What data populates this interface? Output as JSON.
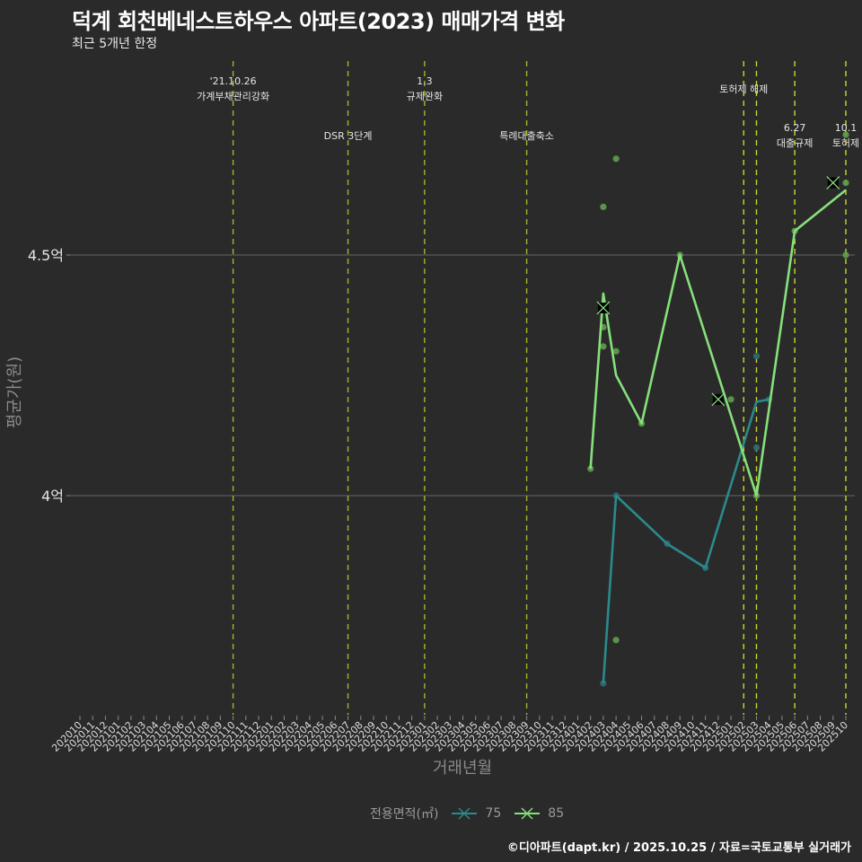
{
  "header": {
    "title": "덕계 회천베네스트하우스 아파트(2023) 매매가격 변화",
    "subtitle": "최근 5개년 한정"
  },
  "legend": {
    "title": "전용면적(㎡)",
    "items": [
      {
        "label": "75",
        "color": "#2a8a8c"
      },
      {
        "label": "85",
        "color": "#86e07c"
      }
    ]
  },
  "footer": "©디아파트(dapt.kr) / 2025.10.25 / 자료=국토교통부 실거래가",
  "colors": {
    "background": "#2b2a2a",
    "gridline": "#5a5a5a",
    "event_line": "#c8d62a",
    "series_75": "#2a8a8c",
    "series_85": "#86e07c",
    "point_85": "#5fa04e",
    "point_75": "#2a6e72"
  },
  "chart_data": {
    "type": "line",
    "title": "덕계 회천베네스트하우스 아파트(2023) 매매가격 변화",
    "subtitle": "최근 5개년 한정",
    "xlabel": "거래년월",
    "ylabel": "평균가(원)",
    "yticks": [
      {
        "value": 4.0,
        "label": "4억"
      },
      {
        "value": 4.5,
        "label": "4.5억"
      }
    ],
    "ylim": [
      3.52,
      4.95
    ],
    "grid": true,
    "legend_position": "bottom",
    "x_ticks": [
      "202010",
      "202011",
      "202012",
      "202101",
      "202102",
      "202103",
      "202104",
      "202105",
      "202106",
      "202107",
      "202108",
      "202109",
      "202110",
      "202111",
      "202112",
      "202201",
      "202202",
      "202203",
      "202204",
      "202205",
      "202206",
      "202207",
      "202208",
      "202209",
      "202210",
      "202211",
      "202212",
      "202301",
      "202302",
      "202303",
      "202304",
      "202305",
      "202306",
      "202307",
      "202308",
      "202309",
      "202310",
      "202311",
      "202312",
      "202401",
      "202402",
      "202403",
      "202404",
      "202405",
      "202406",
      "202407",
      "202408",
      "202409",
      "202410",
      "202411",
      "202412",
      "202501",
      "202502",
      "202503",
      "202504",
      "202505",
      "202506",
      "202507",
      "202508",
      "202509",
      "202510"
    ],
    "series": [
      {
        "name": "75",
        "line": [
          {
            "x": "202403",
            "y": 3.61
          },
          {
            "x": "202404",
            "y": 4.0
          },
          {
            "x": "202408",
            "y": 3.9
          },
          {
            "x": "202411",
            "y": 3.85
          },
          {
            "x": "202503",
            "y": 4.195
          },
          {
            "x": "202504",
            "y": 4.2
          }
        ],
        "points": [
          {
            "x": "202403",
            "y": 3.61
          },
          {
            "x": "202404",
            "y": 4.0
          },
          {
            "x": "202408",
            "y": 3.9
          },
          {
            "x": "202411",
            "y": 3.85
          },
          {
            "x": "202503",
            "y": 4.29
          },
          {
            "x": "202503",
            "y": 4.1
          },
          {
            "x": "202504",
            "y": 4.2
          }
        ]
      },
      {
        "name": "85",
        "line": [
          {
            "x": "202402",
            "y": 4.056
          },
          {
            "x": "202403",
            "y": 4.42
          },
          {
            "x": "202404",
            "y": 4.25
          },
          {
            "x": "202406",
            "y": 4.15
          },
          {
            "x": "202409",
            "y": 4.5
          },
          {
            "x": "202503",
            "y": 4.0
          },
          {
            "x": "202506",
            "y": 4.55
          },
          {
            "x": "202510",
            "y": 4.635
          }
        ],
        "points": [
          {
            "x": "202402",
            "y": 4.056
          },
          {
            "x": "202403",
            "y": 4.6
          },
          {
            "x": "202403",
            "y": 4.35
          },
          {
            "x": "202403",
            "y": 4.31
          },
          {
            "x": "202404",
            "y": 4.7
          },
          {
            "x": "202404",
            "y": 4.3
          },
          {
            "x": "202404",
            "y": 3.7
          },
          {
            "x": "202406",
            "y": 4.15
          },
          {
            "x": "202409",
            "y": 4.5
          },
          {
            "x": "202501",
            "y": 4.2
          },
          {
            "x": "202503",
            "y": 4.0
          },
          {
            "x": "202506",
            "y": 4.55
          },
          {
            "x": "202510",
            "y": 4.75
          },
          {
            "x": "202510",
            "y": 4.65
          },
          {
            "x": "202510",
            "y": 4.5
          }
        ],
        "x_markers": [
          {
            "x": "202403",
            "y": 4.39
          },
          {
            "x": "202412",
            "y": 4.2
          },
          {
            "x": "202509",
            "y": 4.65
          }
        ]
      }
    ],
    "annotations": [
      {
        "x": "202110",
        "date": "'21.10.26",
        "label": "가계부채관리강화",
        "row": 1
      },
      {
        "x": "202207",
        "date": "",
        "label": "DSR 3단계",
        "row": 3
      },
      {
        "x": "202301",
        "date": "1.3",
        "label": "규제완화",
        "row": 1
      },
      {
        "x": "202309",
        "date": "",
        "label": "특례대출축소",
        "row": 3
      },
      {
        "x": "202502",
        "date": "",
        "label": "토허제 해제",
        "row": 2
      },
      {
        "x": "202503",
        "date": "",
        "label": "",
        "row": 0
      },
      {
        "x": "202506",
        "date": "6.27",
        "label": "대출규제",
        "row": 4
      },
      {
        "x": "202510",
        "date": "10.1",
        "label": "토허제",
        "row": 4
      }
    ]
  }
}
